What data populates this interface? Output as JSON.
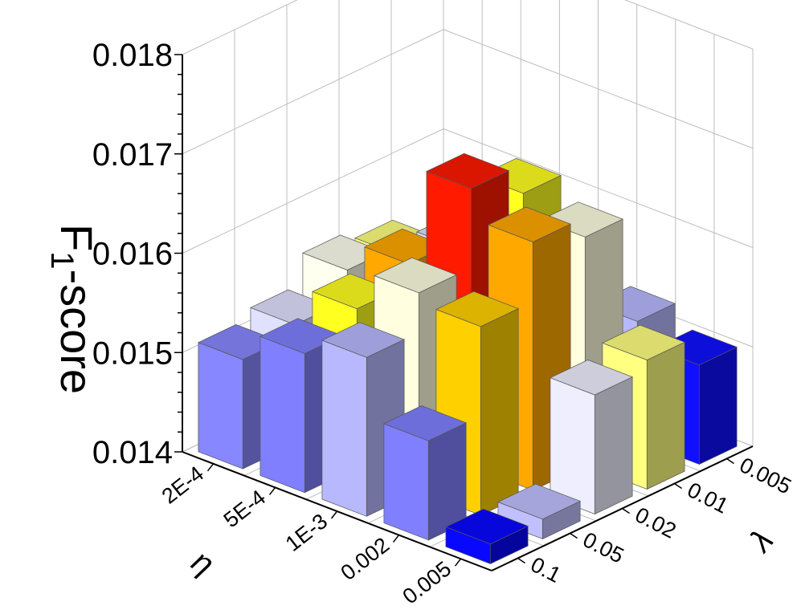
{
  "chart_data": {
    "type": "bar3d",
    "title": "",
    "zlabel_main": "F",
    "zlabel_sub": "1",
    "zlabel_rest": "-score",
    "eta_label": "η",
    "lambda_label": "λ",
    "eta_categories": [
      "2E-4",
      "5E-4",
      "1E-3",
      "0.002",
      "0.005"
    ],
    "lambda_categories": [
      "0.1",
      "0.05",
      "0.02",
      "0.01",
      "0.005"
    ],
    "zlim": [
      0.014,
      0.018
    ],
    "zticks": [
      "0.014",
      "0.015",
      "0.016",
      "0.017",
      "0.018"
    ],
    "grid": true,
    "values": [
      [
        0.0151,
        0.0152,
        0.0155,
        0.0154,
        0.0148
      ],
      [
        0.0154,
        0.0156,
        0.0158,
        0.0157,
        0.0153
      ],
      [
        0.0156,
        0.016,
        0.0168,
        0.0165,
        0.0157
      ],
      [
        0.015,
        0.0159,
        0.0165,
        0.0163,
        0.0152
      ],
      [
        0.0142,
        0.0142,
        0.0152,
        0.0153,
        0.015
      ]
    ],
    "colors": [
      [
        "#8787ff",
        "#e0e0ff",
        "#fffff0",
        "#ffff80",
        "#a0a0ff"
      ],
      [
        "#8080ff",
        "#ffff20",
        "#ffa800",
        "#e0e0ff",
        "#ffff80"
      ],
      [
        "#b8b8ff",
        "#ffffe0",
        "#ff1a00",
        "#ffff20",
        "#a8a8ff"
      ],
      [
        "#8080ff",
        "#ffd000",
        "#ffa800",
        "#ffffe0",
        "#b8b8ff"
      ],
      [
        "#0808ff",
        "#c0c0ff",
        "#eeeeff",
        "#ffff80",
        "#1010ff"
      ]
    ]
  }
}
